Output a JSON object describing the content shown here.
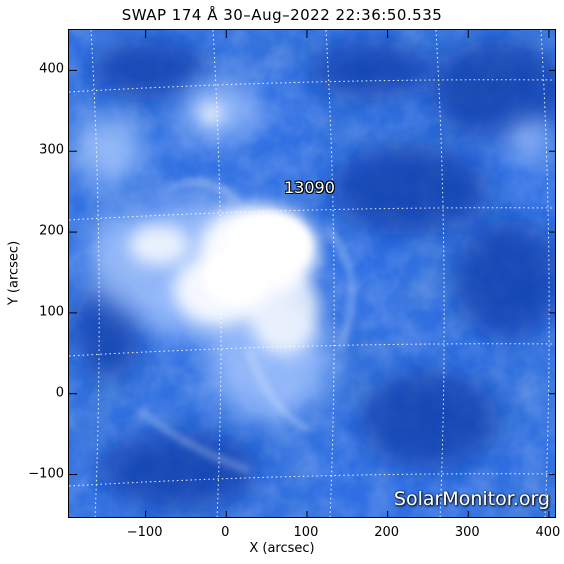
{
  "title": "SWAP 174 Å 30–Aug–2022 22:36:50.535",
  "active_region": "13090",
  "watermark": "SolarMonitor.org",
  "colors": {
    "deep_blue": "#0d3fb0",
    "mid_blue": "#2a6ae0",
    "light_blue": "#8fb6ff",
    "white": "#ffffff"
  },
  "chart_data": {
    "type": "heatmap",
    "xlabel": "X (arcsec)",
    "ylabel": "Y (arcsec)",
    "xlim": [
      -195,
      410
    ],
    "ylim": [
      -155,
      450
    ],
    "xticks": [
      -100,
      0,
      100,
      200,
      300,
      400
    ],
    "yticks": [
      -100,
      0,
      100,
      200,
      300,
      400
    ],
    "xtick_labels": [
      "−100",
      "0",
      "100",
      "200",
      "300",
      "400"
    ],
    "ytick_labels": [
      "−100",
      "0",
      "100",
      "200",
      "300",
      "400"
    ],
    "grid": true
  }
}
